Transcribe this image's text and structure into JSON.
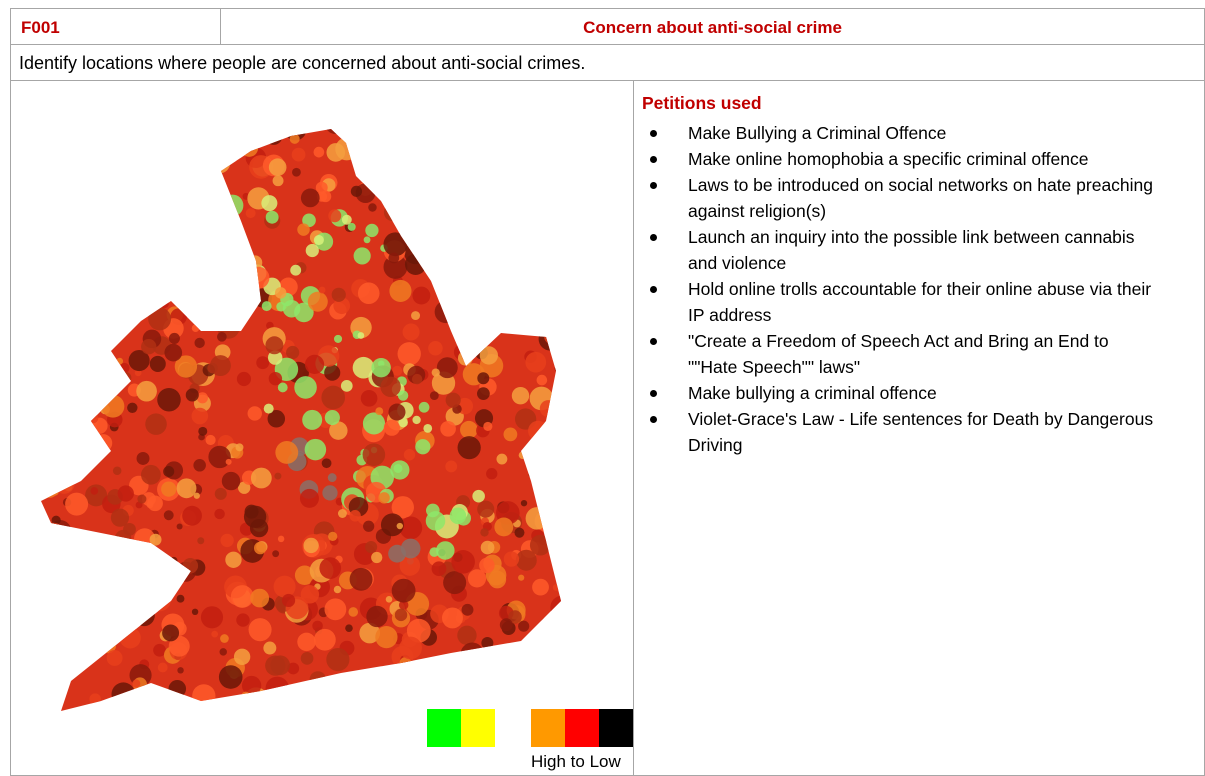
{
  "header": {
    "code": "F001",
    "title": "Concern about anti-social crime"
  },
  "description": "Identify locations where people are concerned about anti-social crimes.",
  "map": {
    "legend_label": "High to Low"
  },
  "petitions": {
    "heading": "Petitions used",
    "items": [
      "Make Bullying a Criminal Offence",
      "Make online homophobia a specific criminal offence",
      "Laws to be introduced on social networks on hate preaching against religion(s)",
      "Launch an inquiry into the possible link between cannabis and violence",
      "Hold online trolls accountable for their online abuse via their IP address",
      "\"Create a Freedom of Speech Act and Bring an End to \"\"Hate Speech\"\" laws\"",
      "Make bullying a criminal offence",
      "Violet-Grace's Law - Life sentences for Death by Dangerous Driving"
    ]
  }
}
